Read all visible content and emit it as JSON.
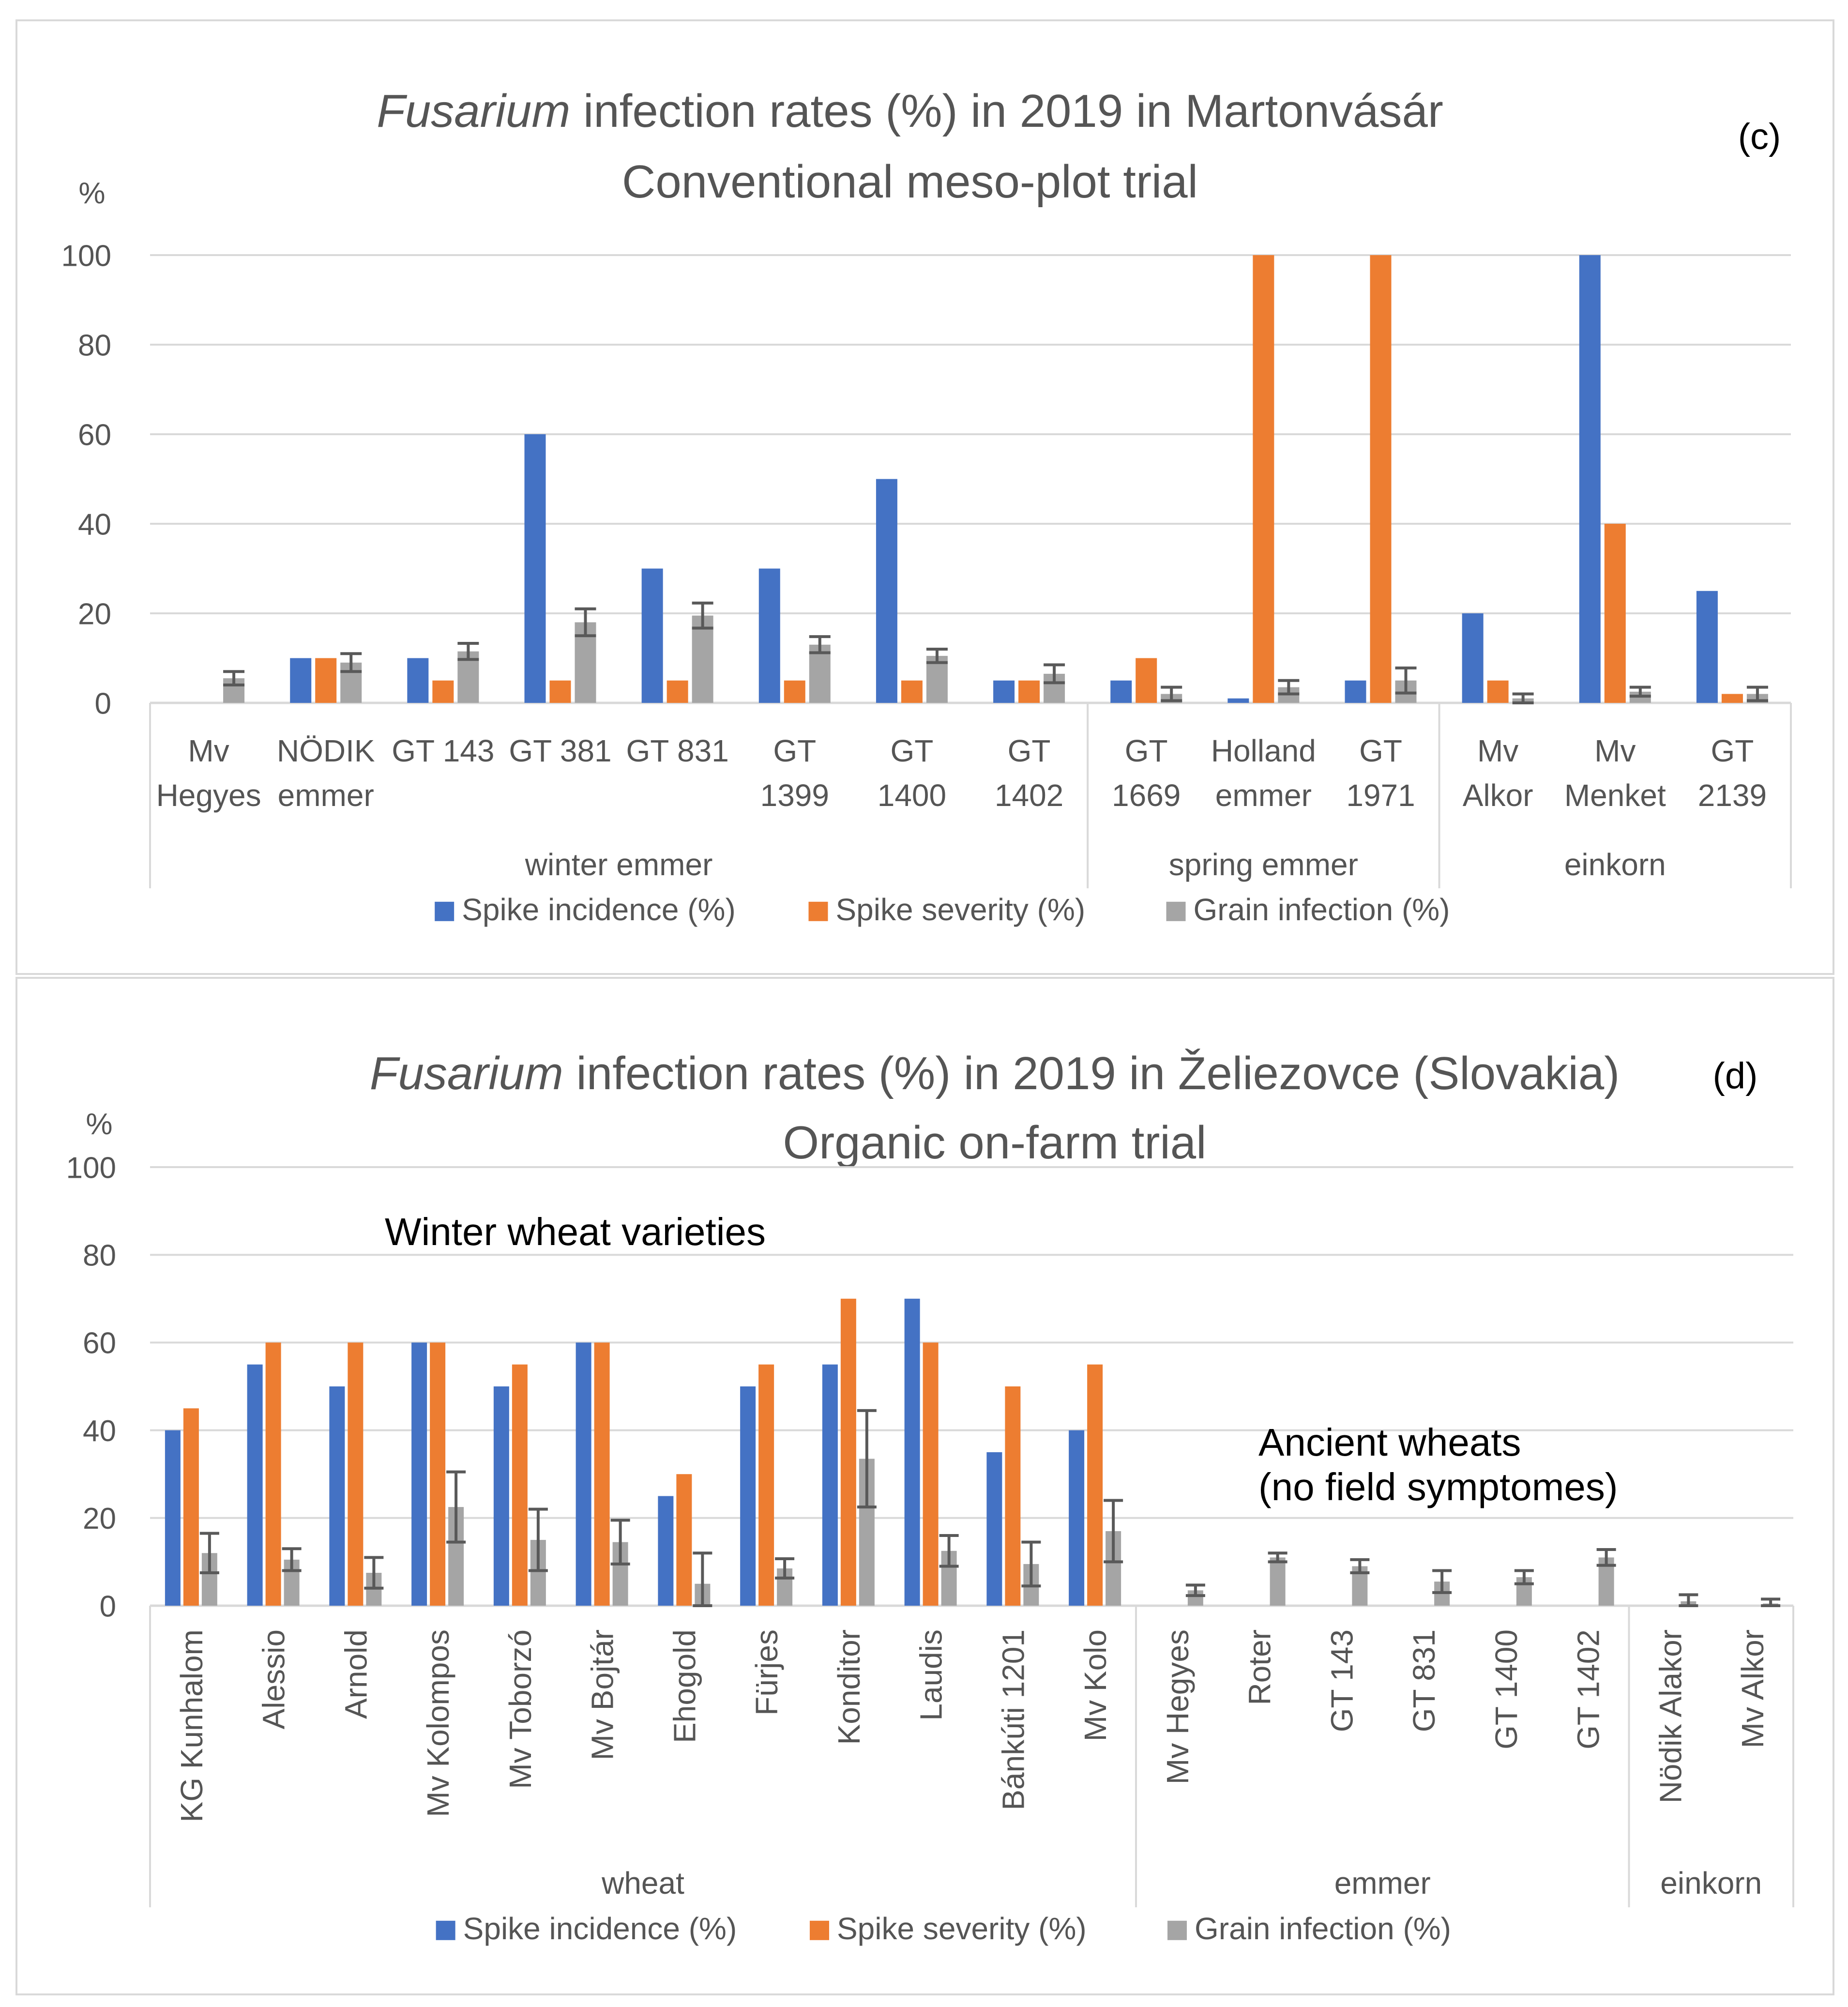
{
  "series_colors": {
    "Spike incidence (%)": "#4472C4",
    "Spike severity (%)": "#ED7D31",
    "Grain infection (%)": "#A5A5A5"
  },
  "chart_data": [
    {
      "id": "c",
      "type": "bar",
      "title_italic": "Fusarium",
      "title_rest": " infection rates (%) in 2019 in Martonvásár",
      "subtitle": "Conventional meso-plot trial",
      "panel_label": "(c)",
      "ylabel": "%",
      "ylim": [
        0,
        100
      ],
      "yticks": [
        0,
        20,
        40,
        60,
        80,
        100
      ],
      "grid": true,
      "legend_position": "bottom",
      "categories": [
        [
          "Mv",
          "Hegyes"
        ],
        [
          "NÖDIK",
          "emmer"
        ],
        [
          "GT 143"
        ],
        [
          "GT 381"
        ],
        [
          "GT 831"
        ],
        [
          "GT",
          "1399"
        ],
        [
          "GT",
          "1400"
        ],
        [
          "GT",
          "1402"
        ],
        [
          "GT",
          "1669"
        ],
        [
          "Holland",
          "emmer"
        ],
        [
          "GT",
          "1971"
        ],
        [
          "Mv",
          "Alkor"
        ],
        [
          "Mv",
          "Menket"
        ],
        [
          "GT",
          "2139"
        ]
      ],
      "groups": [
        {
          "label": "winter emmer",
          "start": 0,
          "end": 7
        },
        {
          "label": "spring emmer",
          "start": 8,
          "end": 10
        },
        {
          "label": "einkorn",
          "start": 11,
          "end": 13
        }
      ],
      "series": [
        {
          "name": "Spike incidence (%)",
          "values": [
            0,
            10,
            10,
            60,
            30,
            30,
            50,
            5,
            5,
            1,
            5,
            20,
            100,
            25
          ]
        },
        {
          "name": "Spike severity (%)",
          "values": [
            0,
            10,
            5,
            5,
            5,
            5,
            5,
            5,
            10,
            100,
            100,
            5,
            40,
            2
          ]
        },
        {
          "name": "Grain infection (%)",
          "values": [
            5.5,
            9,
            11.5,
            18,
            19.5,
            13,
            10.5,
            6.5,
            2,
            3.5,
            5,
            1,
            2.5,
            2
          ],
          "errors": [
            1.5,
            2,
            1.8,
            3,
            2.8,
            1.8,
            1.5,
            2,
            1.5,
            1.5,
            2.8,
            1,
            1,
            1.5
          ]
        }
      ],
      "legend": [
        "Spike incidence (%)",
        "Spike severity (%)",
        "Grain infection (%)"
      ]
    },
    {
      "id": "d",
      "type": "bar",
      "title_italic": "Fusarium",
      "title_rest": " infection rates (%) in 2019 in Želiezovce (Slovakia)",
      "subtitle": "Organic on-farm trial",
      "panel_label": "(d)",
      "ylabel": "%",
      "ylim": [
        0,
        100
      ],
      "yticks": [
        0,
        20,
        40,
        60,
        80,
        100
      ],
      "grid": true,
      "legend_position": "bottom",
      "categories": [
        "KG Kunhalom",
        "Alessio",
        "Arnold",
        "Mv Kolompos",
        "Mv Toborzó",
        "Mv Bojtár",
        "Ehogold",
        "Fürjes",
        "Konditor",
        "Laudis",
        "Bánkúti 1201",
        "Mv Kolo",
        "Mv Hegyes",
        "Roter",
        "GT 143",
        "GT 831",
        "GT 1400",
        "GT 1402",
        "Nödik Alakor",
        "Mv Alkor"
      ],
      "groups": [
        {
          "label": "wheat",
          "start": 0,
          "end": 11
        },
        {
          "label": "emmer",
          "start": 12,
          "end": 17
        },
        {
          "label": "einkorn",
          "start": 18,
          "end": 19
        }
      ],
      "annotations": [
        {
          "lines": [
            "Winter wheat varieties"
          ],
          "anchor": "upper-left"
        },
        {
          "lines": [
            "Ancient wheats",
            "(no field symptomes)"
          ],
          "anchor": "middle-right"
        }
      ],
      "series": [
        {
          "name": "Spike incidence (%)",
          "values": [
            40,
            55,
            50,
            60,
            50,
            60,
            25,
            50,
            55,
            70,
            35,
            40,
            0,
            0,
            0,
            0,
            0,
            0,
            0,
            0
          ]
        },
        {
          "name": "Spike severity (%)",
          "values": [
            45,
            60,
            60,
            60,
            55,
            60,
            30,
            55,
            70,
            60,
            50,
            55,
            0,
            0,
            0,
            0,
            0,
            0,
            0,
            0
          ]
        },
        {
          "name": "Grain infection (%)",
          "values": [
            12,
            10.5,
            7.5,
            22.5,
            15,
            14.5,
            5,
            8.5,
            33.5,
            12.5,
            9.5,
            17,
            3.5,
            11,
            9,
            5.5,
            6.5,
            11,
            1,
            0.5
          ],
          "errors": [
            4.5,
            2.5,
            3.5,
            8,
            7,
            5,
            7,
            2.2,
            11,
            3.5,
            5,
            7,
            1.2,
            1,
            1.5,
            2.5,
            1.5,
            1.8,
            1.5,
            1
          ]
        }
      ],
      "legend": [
        "Spike incidence (%)",
        "Spike severity (%)",
        "Grain infection (%)"
      ]
    }
  ]
}
